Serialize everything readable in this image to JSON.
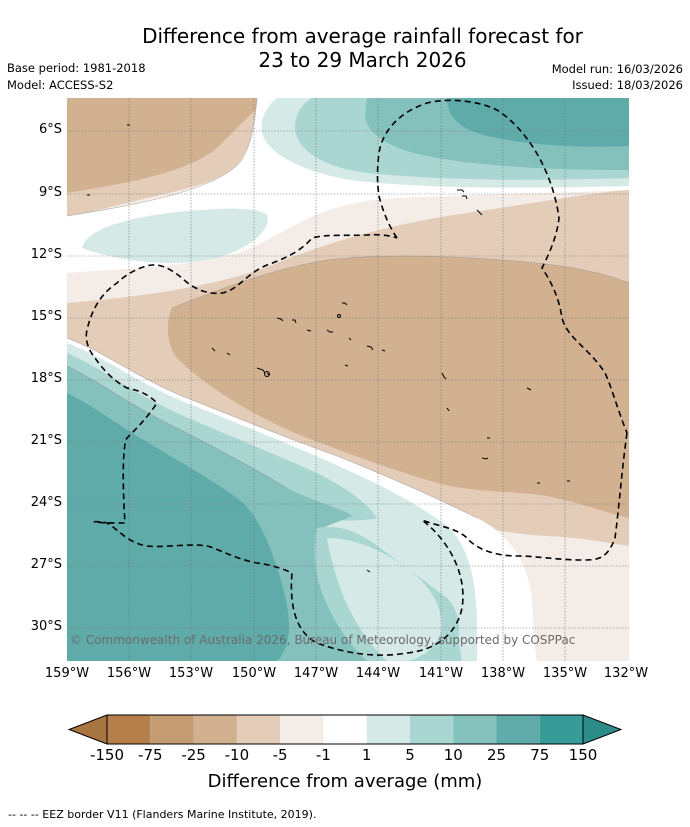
{
  "header": {
    "title_line1": "Difference from average rainfall forecast for",
    "title_line2": "23 to 29 March 2026",
    "base_period": "Base period: 1981-2018",
    "model": "Model: ACCESS-S2",
    "model_run": "Model run: 16/03/2026",
    "issued": "Issued: 18/03/2026"
  },
  "map": {
    "lat_labels": [
      "6°S",
      "9°S",
      "12°S",
      "15°S",
      "18°S",
      "21°S",
      "24°S",
      "27°S",
      "30°S"
    ],
    "lon_labels": [
      "159°W",
      "156°W",
      "153°W",
      "150°W",
      "147°W",
      "144°W",
      "141°W",
      "138°W",
      "135°W",
      "132°W"
    ],
    "copyright": "© Commonwealth of Australia 2026, Bureau of Meteorology, supported by COSPPac"
  },
  "legend": {
    "title": "Difference from average (mm)",
    "tick_labels": [
      "-150",
      "-75",
      "-25",
      "-10",
      "-5",
      "-1",
      "1",
      "5",
      "10",
      "25",
      "75",
      "150"
    ],
    "colors": {
      "brown_extend": "#a8743f",
      "brown_strong": "#b47f4a",
      "brown_mid": "#c59b72",
      "brown_light": "#d2b190",
      "brown_pale": "#e4cdb8",
      "brown_faint": "#f4ece6",
      "neutral": "#ffffff",
      "teal_faint": "#d5e9e7",
      "teal_pale": "#aad6d2",
      "teal_light": "#84c1bd",
      "teal_mid": "#5fabaa",
      "teal_strong": "#379b97",
      "teal_extend": "#2b8c89"
    }
  },
  "footnote": "-- -- -- EEZ border V11 (Flanders Marine Institute, 2019)."
}
